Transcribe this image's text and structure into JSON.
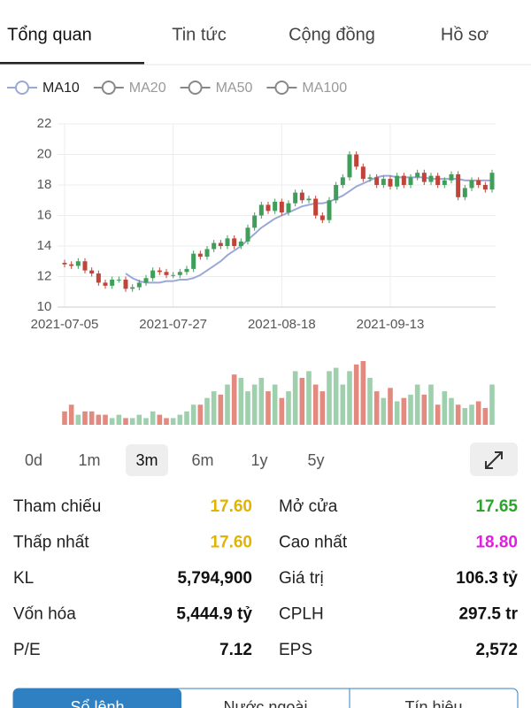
{
  "tabs": [
    "Tổng quan",
    "Tin tức",
    "Cộng đồng",
    "Hồ sơ"
  ],
  "active_tab": 0,
  "chart_data": {
    "type": "candlestick",
    "categories": [
      "2021-07-05",
      null,
      null,
      null,
      null,
      null,
      null,
      null,
      null,
      null,
      null,
      null,
      null,
      null,
      null,
      null,
      "2021-07-27",
      null,
      null,
      null,
      null,
      null,
      null,
      null,
      null,
      null,
      null,
      null,
      null,
      null,
      null,
      null,
      "2021-08-18",
      null,
      null,
      null,
      null,
      null,
      null,
      null,
      null,
      null,
      null,
      null,
      null,
      null,
      null,
      null,
      "2021-09-13",
      null,
      null,
      null,
      null,
      null,
      null,
      null,
      null,
      null,
      null,
      null,
      null,
      null,
      null,
      null
    ],
    "open": [
      12.9,
      12.8,
      12.7,
      13.0,
      12.4,
      12.2,
      11.6,
      11.4,
      11.8,
      11.8,
      11.2,
      11.3,
      11.6,
      11.9,
      12.4,
      12.3,
      12.1,
      12.1,
      12.3,
      12.5,
      13.5,
      13.3,
      13.8,
      14.2,
      14.0,
      14.5,
      14.0,
      14.3,
      15.2,
      16.0,
      16.7,
      16.3,
      16.9,
      16.2,
      16.8,
      17.5,
      17.0,
      17.1,
      16.0,
      15.7,
      17.0,
      18.0,
      18.5,
      20.0,
      19.2,
      18.4,
      18.5,
      18.0,
      18.4,
      17.9,
      18.6,
      18.0,
      18.5,
      18.8,
      18.2,
      18.6,
      18.0,
      18.3,
      18.7,
      17.2,
      17.8,
      18.3,
      18.0,
      17.7
    ],
    "high": [
      13.1,
      13.0,
      13.2,
      13.2,
      12.6,
      12.4,
      11.8,
      12.0,
      12.0,
      12.0,
      11.5,
      11.8,
      12.1,
      12.6,
      12.6,
      12.5,
      12.3,
      12.5,
      12.7,
      13.7,
      13.7,
      14.0,
      14.4,
      14.4,
      14.7,
      14.7,
      14.5,
      15.4,
      16.2,
      16.9,
      16.9,
      17.1,
      17.1,
      17.0,
      17.7,
      17.7,
      17.3,
      17.3,
      16.2,
      17.2,
      18.2,
      18.7,
      20.2,
      20.2,
      19.4,
      18.7,
      18.7,
      18.6,
      18.6,
      18.8,
      18.8,
      18.7,
      19.0,
      19.0,
      18.8,
      18.8,
      18.5,
      18.9,
      18.9,
      18.0,
      18.5,
      18.5,
      18.2,
      19.0
    ],
    "low": [
      12.6,
      12.5,
      12.5,
      12.2,
      12.0,
      11.4,
      11.2,
      11.2,
      11.6,
      11.0,
      11.0,
      11.1,
      11.4,
      11.7,
      12.1,
      11.9,
      11.9,
      11.9,
      12.1,
      12.3,
      13.1,
      13.1,
      13.6,
      13.8,
      13.8,
      13.8,
      13.8,
      14.1,
      15.0,
      15.8,
      16.1,
      16.1,
      16.0,
      16.0,
      16.6,
      16.8,
      16.8,
      15.8,
      15.5,
      15.5,
      16.8,
      17.8,
      18.3,
      19.0,
      18.2,
      18.2,
      17.8,
      17.8,
      17.7,
      17.7,
      17.8,
      17.8,
      18.3,
      18.0,
      18.0,
      17.8,
      17.8,
      18.1,
      17.0,
      17.0,
      17.6,
      17.8,
      17.5,
      17.5
    ],
    "close": [
      12.8,
      12.7,
      13.0,
      12.4,
      12.2,
      11.6,
      11.4,
      11.8,
      11.8,
      11.2,
      11.3,
      11.6,
      11.9,
      12.4,
      12.3,
      12.1,
      12.1,
      12.3,
      12.5,
      13.5,
      13.3,
      13.8,
      14.2,
      14.0,
      14.5,
      14.0,
      14.3,
      15.2,
      16.0,
      16.7,
      16.3,
      16.9,
      16.2,
      16.8,
      17.5,
      17.0,
      17.1,
      16.0,
      15.7,
      17.0,
      18.0,
      18.5,
      20.0,
      19.2,
      18.4,
      18.5,
      18.0,
      18.4,
      17.9,
      18.6,
      18.0,
      18.5,
      18.8,
      18.2,
      18.6,
      18.0,
      18.3,
      18.7,
      17.2,
      17.8,
      18.3,
      18.0,
      17.7,
      18.8
    ],
    "up_color": "#3f9e5a",
    "down_color": "#c0443a",
    "volume_up_color": "#9fd0ae",
    "volume_down_color": "#e38a80",
    "series": [
      {
        "name": "MA10",
        "color": "#9aa8d8",
        "active": true,
        "values": [
          null,
          null,
          null,
          null,
          null,
          null,
          null,
          null,
          null,
          12.2,
          11.9,
          11.7,
          11.6,
          11.6,
          11.6,
          11.7,
          11.7,
          11.8,
          11.8,
          11.9,
          12.1,
          12.4,
          12.7,
          13.0,
          13.4,
          13.7,
          14.0,
          14.4,
          14.8,
          15.2,
          15.5,
          15.8,
          16.0,
          16.2,
          16.4,
          16.6,
          16.7,
          16.8,
          16.8,
          16.9,
          17.1,
          17.3,
          17.6,
          17.9,
          18.1,
          18.3,
          18.5,
          18.6,
          18.6,
          18.5,
          18.5,
          18.5,
          18.5,
          18.5,
          18.4,
          18.4,
          18.4,
          18.4,
          18.4,
          18.3,
          18.3,
          18.3,
          18.3,
          18.3
        ]
      },
      {
        "name": "MA20",
        "color": "#888",
        "active": false
      },
      {
        "name": "MA50",
        "color": "#888",
        "active": false
      },
      {
        "name": "MA100",
        "color": "#888",
        "active": false
      }
    ],
    "volume": [
      2,
      3,
      1.5,
      2,
      2,
      1.5,
      1.5,
      1,
      1.5,
      1,
      1,
      1.5,
      1,
      2,
      1.5,
      1,
      1,
      1.5,
      2,
      3,
      3,
      4,
      5,
      4.5,
      6,
      7.5,
      7,
      5,
      6,
      7,
      5,
      6,
      4,
      5,
      8,
      7,
      8,
      6,
      5,
      8,
      8.5,
      6,
      8,
      9,
      9.5,
      7,
      5,
      4,
      5.5,
      3.5,
      4,
      4.5,
      6,
      4.5,
      6,
      3,
      5,
      4,
      3,
      2.5,
      3,
      3.5,
      2.5,
      6
    ],
    "ylim": [
      10,
      22
    ],
    "yticks": [
      10,
      12,
      14,
      16,
      18,
      20,
      22
    ],
    "grid": true
  },
  "periods": [
    "0d",
    "1m",
    "3m",
    "6m",
    "1y",
    "5y"
  ],
  "active_period": 2,
  "stats": [
    [
      {
        "label": "Tham chiếu",
        "value": "17.60",
        "color": "#e0b400"
      },
      {
        "label": "Mở cửa",
        "value": "17.65",
        "color": "#2aa52a"
      }
    ],
    [
      {
        "label": "Thấp nhất",
        "value": "17.60",
        "color": "#e0b400"
      },
      {
        "label": "Cao nhất",
        "value": "18.80",
        "color": "#e01ee0"
      }
    ],
    [
      {
        "label": "KL",
        "value": "5,794,900",
        "color": "#111"
      },
      {
        "label": "Giá trị",
        "value": "106.3 tỷ",
        "color": "#111"
      }
    ],
    [
      {
        "label": "Vốn hóa",
        "value": "5,444.9 tỷ",
        "color": "#111"
      },
      {
        "label": "CPLH",
        "value": "297.5 tr",
        "color": "#111"
      }
    ],
    [
      {
        "label": "P/E",
        "value": "7.12",
        "color": "#111"
      },
      {
        "label": "EPS",
        "value": "2,572",
        "color": "#111"
      }
    ]
  ],
  "bottom_tabs": [
    "Sổ lệnh",
    "Nước ngoài",
    "Tín hiệu"
  ]
}
